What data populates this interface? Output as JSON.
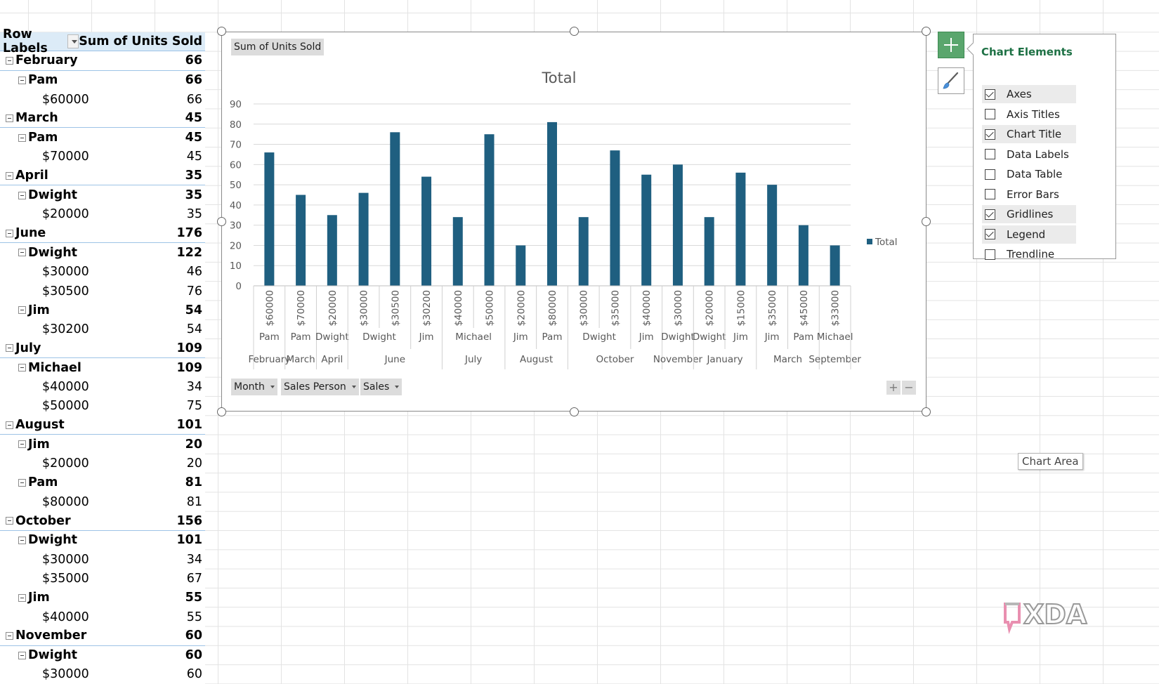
{
  "pivot": {
    "header": {
      "row_labels": "Row Labels",
      "values_header": "Sum of Units Sold"
    },
    "rows": [
      {
        "level": 0,
        "label": "February",
        "value": "66"
      },
      {
        "level": 1,
        "label": "Pam",
        "value": "66"
      },
      {
        "level": 2,
        "label": "$60000",
        "value": "66"
      },
      {
        "level": 0,
        "label": "March",
        "value": "45"
      },
      {
        "level": 1,
        "label": "Pam",
        "value": "45"
      },
      {
        "level": 2,
        "label": "$70000",
        "value": "45"
      },
      {
        "level": 0,
        "label": "April",
        "value": "35"
      },
      {
        "level": 1,
        "label": "Dwight",
        "value": "35"
      },
      {
        "level": 2,
        "label": "$20000",
        "value": "35"
      },
      {
        "level": 0,
        "label": "June",
        "value": "176"
      },
      {
        "level": 1,
        "label": "Dwight",
        "value": "122"
      },
      {
        "level": 2,
        "label": "$30000",
        "value": "46"
      },
      {
        "level": 2,
        "label": "$30500",
        "value": "76"
      },
      {
        "level": 1,
        "label": "Jim",
        "value": "54"
      },
      {
        "level": 2,
        "label": "$30200",
        "value": "54"
      },
      {
        "level": 0,
        "label": "July",
        "value": "109"
      },
      {
        "level": 1,
        "label": "Michael",
        "value": "109"
      },
      {
        "level": 2,
        "label": "$40000",
        "value": "34"
      },
      {
        "level": 2,
        "label": "$50000",
        "value": "75"
      },
      {
        "level": 0,
        "label": "August",
        "value": "101"
      },
      {
        "level": 1,
        "label": "Jim",
        "value": "20"
      },
      {
        "level": 2,
        "label": "$20000",
        "value": "20"
      },
      {
        "level": 1,
        "label": "Pam",
        "value": "81"
      },
      {
        "level": 2,
        "label": "$80000",
        "value": "81"
      },
      {
        "level": 0,
        "label": "October",
        "value": "156"
      },
      {
        "level": 1,
        "label": "Dwight",
        "value": "101"
      },
      {
        "level": 2,
        "label": "$30000",
        "value": "34"
      },
      {
        "level": 2,
        "label": "$35000",
        "value": "67"
      },
      {
        "level": 1,
        "label": "Jim",
        "value": "55"
      },
      {
        "level": 2,
        "label": "$40000",
        "value": "55"
      },
      {
        "level": 0,
        "label": "November",
        "value": "60"
      },
      {
        "level": 1,
        "label": "Dwight",
        "value": "60"
      },
      {
        "level": 2,
        "label": "$30000",
        "value": "60"
      }
    ]
  },
  "chart": {
    "values_field_button": "Sum of Units Sold",
    "axis_field_buttons": [
      "Month",
      "Sales Person",
      "Sales"
    ]
  },
  "chart_data": {
    "type": "bar",
    "title": "Total",
    "xlabel": "",
    "ylabel": "",
    "ylim": [
      0,
      90
    ],
    "yticks": [
      0,
      10,
      20,
      30,
      40,
      50,
      60,
      70,
      80,
      90
    ],
    "grid": true,
    "legend": "right",
    "color": "#1f5f80",
    "categories": [
      "$60000",
      "$70000",
      "$20000",
      "$30000",
      "$30500",
      "$30200",
      "$40000",
      "$50000",
      "$20000",
      "$80000",
      "$30000",
      "$35000",
      "$40000",
      "$30000",
      "$20000",
      "$15000",
      "$35000",
      "$45000",
      "$33000"
    ],
    "series": [
      {
        "name": "Total",
        "values": [
          66,
          45,
          35,
          46,
          76,
          54,
          34,
          75,
          20,
          81,
          34,
          67,
          55,
          60,
          34,
          56,
          50,
          30,
          20
        ]
      }
    ],
    "persons": [
      {
        "label": "Pam",
        "span": 1
      },
      {
        "label": "Pam",
        "span": 1
      },
      {
        "label": "Dwight",
        "span": 1
      },
      {
        "label": "Dwight",
        "span": 2
      },
      {
        "label": "Jim",
        "span": 1
      },
      {
        "label": "Michael",
        "span": 2
      },
      {
        "label": "Jim",
        "span": 1
      },
      {
        "label": "Pam",
        "span": 1
      },
      {
        "label": "Dwight",
        "span": 2
      },
      {
        "label": "Jim",
        "span": 1
      },
      {
        "label": "Dwight",
        "span": 1
      },
      {
        "label": "Dwight",
        "span": 1
      },
      {
        "label": "Jim",
        "span": 1
      },
      {
        "label": "Jim",
        "span": 1
      },
      {
        "label": "Pam",
        "span": 1
      },
      {
        "label": "Michael",
        "span": 1
      }
    ],
    "months": [
      {
        "label": "February",
        "span": 1
      },
      {
        "label": "March",
        "span": 1
      },
      {
        "label": "April",
        "span": 1
      },
      {
        "label": "June",
        "span": 3
      },
      {
        "label": "July",
        "span": 2
      },
      {
        "label": "August",
        "span": 2
      },
      {
        "label": "October",
        "span": 3
      },
      {
        "label": "November",
        "span": 1
      },
      {
        "label": "January",
        "span": 2
      },
      {
        "label": "March",
        "span": 2
      },
      {
        "label": "September",
        "span": 1
      }
    ]
  },
  "chart_elements": {
    "title": "Chart Elements",
    "items": [
      {
        "label": "Axes",
        "checked": true
      },
      {
        "label": "Axis Titles",
        "checked": false
      },
      {
        "label": "Chart Title",
        "checked": true
      },
      {
        "label": "Data Labels",
        "checked": false
      },
      {
        "label": "Data Table",
        "checked": false
      },
      {
        "label": "Error Bars",
        "checked": false
      },
      {
        "label": "Gridlines",
        "checked": true
      },
      {
        "label": "Legend",
        "checked": true
      },
      {
        "label": "Trendline",
        "checked": false
      }
    ]
  },
  "tooltip": "Chart Area",
  "watermark": "XDA",
  "icons": {
    "add_chart_element": "plus-icon",
    "chart_styles": "paintbrush-icon",
    "collapse": "minus-icon"
  }
}
